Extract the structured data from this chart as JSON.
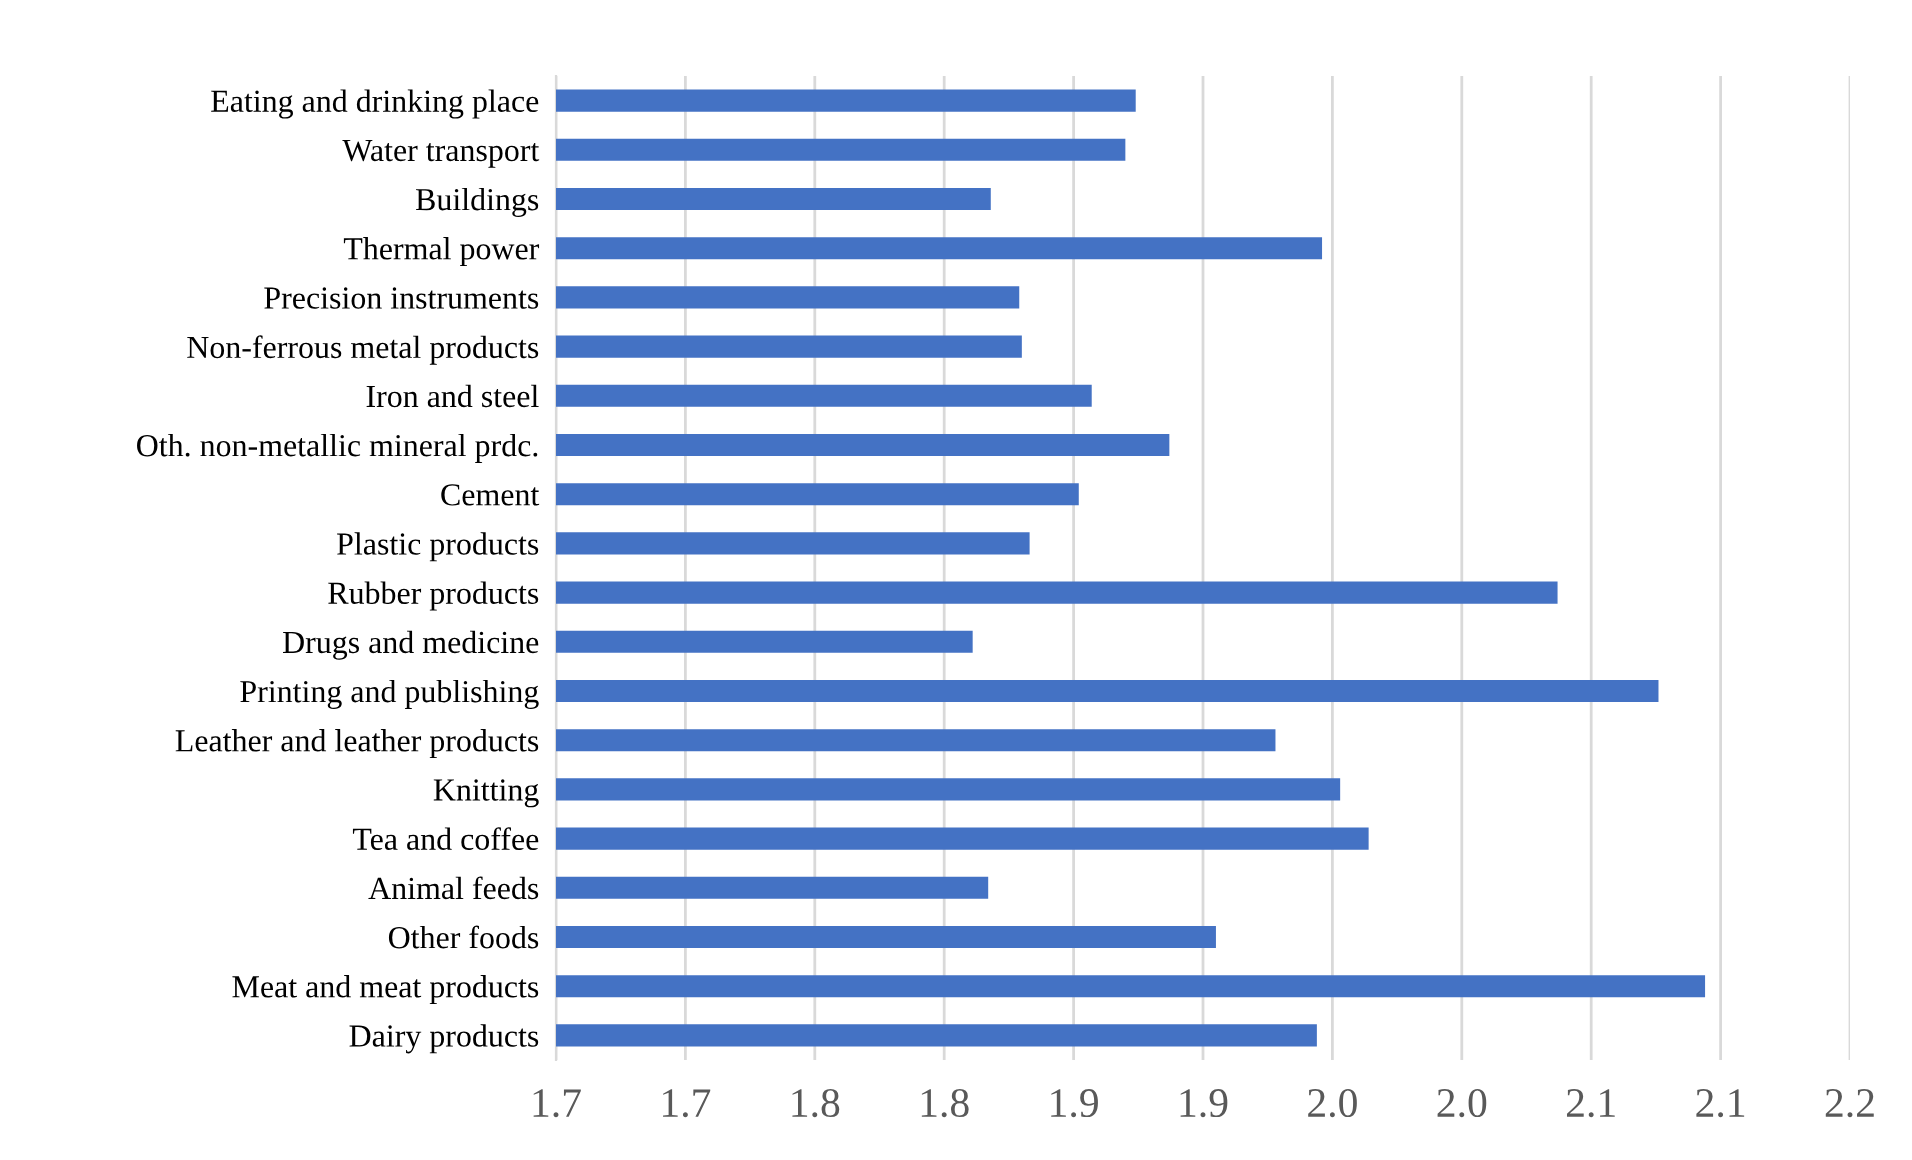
{
  "chart_data": {
    "type": "bar",
    "orientation": "horizontal",
    "color": "#4472c4",
    "grid": "x",
    "categories": [
      "Eating and drinking place",
      "Water transport",
      "Buildings",
      "Thermal power",
      "Precision instruments",
      "Non-ferrous metal products",
      "Iron and steel",
      "Oth. non-metallic mineral prdc.",
      "Cement",
      "Plastic products",
      "Rubber products",
      "Drugs and medicine",
      "Printing and publishing",
      "Leather and leather products",
      "Knitting",
      "Tea and coffee",
      "Animal feeds",
      "Other foods",
      "Meat and meat products",
      "Dairy products"
    ],
    "values": [
      1.924,
      1.92,
      1.868,
      1.996,
      1.879,
      1.88,
      1.907,
      1.937,
      1.902,
      1.883,
      2.087,
      1.861,
      2.126,
      1.978,
      2.003,
      2.014,
      1.867,
      1.955,
      2.144,
      1.994
    ],
    "xlim": [
      1.7,
      2.2
    ],
    "xticks": [
      {
        "value": 1.7,
        "label": "1.7"
      },
      {
        "value": 1.75,
        "label": "1.7"
      },
      {
        "value": 1.8,
        "label": "1.8"
      },
      {
        "value": 1.85,
        "label": "1.8"
      },
      {
        "value": 1.9,
        "label": "1.9"
      },
      {
        "value": 1.95,
        "label": "1.9"
      },
      {
        "value": 2.0,
        "label": "2.0"
      },
      {
        "value": 2.05,
        "label": "2.0"
      },
      {
        "value": 2.1,
        "label": "2.1"
      },
      {
        "value": 2.15,
        "label": "2.1"
      },
      {
        "value": 2.2,
        "label": "2.2"
      }
    ]
  }
}
